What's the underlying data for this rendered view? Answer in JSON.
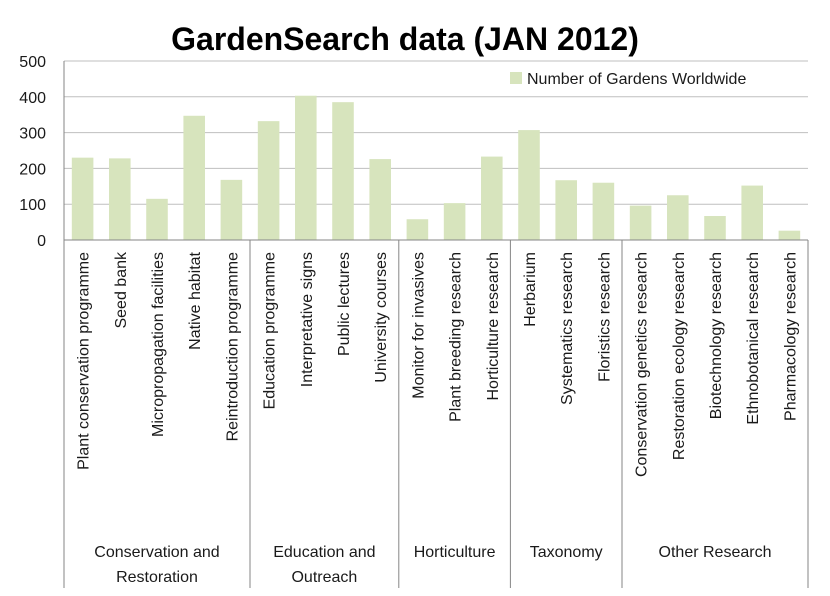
{
  "chart_data": {
    "type": "bar",
    "title": "GardenSearch data (JAN 2012)",
    "ylim": [
      0,
      500
    ],
    "yticks": [
      "0",
      "100",
      "200",
      "300",
      "400",
      "500"
    ],
    "grid": true,
    "legend": {
      "position": "top-right",
      "label": "Number of Gardens Worldwide"
    },
    "colors": {
      "bar": "#d7e4bd",
      "grid": "#bfbfbf",
      "axis": "#868686"
    },
    "groups": [
      {
        "label_lines": [
          "Conservation and",
          "Restoration"
        ],
        "categories": 5
      },
      {
        "label_lines": [
          "Education and",
          "Outreach"
        ],
        "categories": 4
      },
      {
        "label_lines": [
          "Horticulture"
        ],
        "categories": 3
      },
      {
        "label_lines": [
          "Taxonomy"
        ],
        "categories": 3
      },
      {
        "label_lines": [
          "Other Research"
        ],
        "categories": 5
      }
    ],
    "categories": [
      "Plant conservation programme",
      "Seed bank",
      "Micropropagation facilities",
      "Native habitat",
      "Reintroduction programme",
      "Education programme",
      "Interpretative signs",
      "Public lectures",
      "University courses",
      "Monitor for invasives",
      "Plant breeding research",
      "Horticulture research",
      "Herbarium",
      "Systematics research",
      "Floristics research",
      "Conservation genetics research",
      "Restoration ecology research",
      "Biotechnology research",
      "Ethnobotanical research",
      "Pharmacology research"
    ],
    "series": [
      {
        "name": "Number of Gardens Worldwide",
        "values": [
          230,
          228,
          115,
          347,
          168,
          332,
          403,
          385,
          226,
          58,
          103,
          233,
          307,
          167,
          160,
          96,
          125,
          67,
          152,
          26
        ]
      }
    ]
  }
}
